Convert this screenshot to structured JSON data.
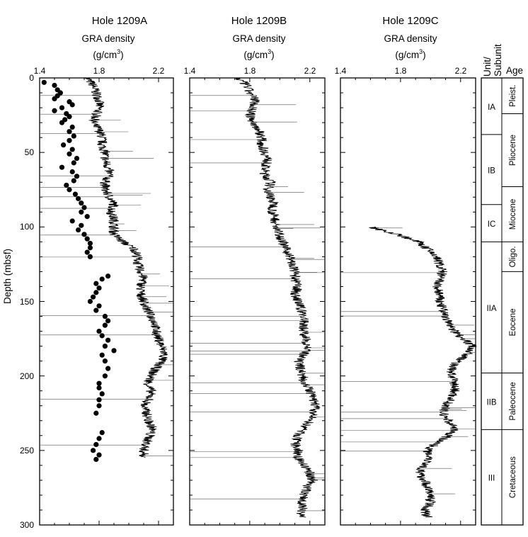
{
  "chart_data": [
    {
      "type": "line",
      "title": "Hole 1209A",
      "xlabel": "GRA density",
      "xunit": "(g/cm",
      "xunit_sup": "3",
      "xunit_close": ")",
      "ylabel": "Depth (mbsf)",
      "xlim": [
        1.4,
        2.3
      ],
      "ylim": [
        0,
        300
      ],
      "x_ticks": [
        "1.4",
        "1.8",
        "2.2"
      ],
      "y_ticks": [
        "0",
        "50",
        "100",
        "150",
        "200",
        "250",
        "300"
      ],
      "line_color": "#000000",
      "point_color": "#000000",
      "series": [
        {
          "style": "trace",
          "depth": [
            0,
            5,
            10,
            15,
            20,
            25,
            30,
            35,
            40,
            45,
            50,
            55,
            60,
            65,
            70,
            75,
            80,
            85,
            90,
            95,
            100,
            105,
            110,
            115,
            120,
            125,
            130,
            135,
            140,
            145,
            150,
            155,
            160,
            165,
            170,
            175,
            180,
            185,
            190,
            195,
            200,
            205,
            210,
            215,
            220,
            225,
            230,
            235,
            240,
            245,
            250,
            255
          ],
          "density": [
            1.72,
            1.76,
            1.78,
            1.8,
            1.8,
            1.78,
            1.76,
            1.8,
            1.82,
            1.82,
            1.84,
            1.84,
            1.86,
            1.87,
            1.84,
            1.84,
            1.87,
            1.9,
            1.88,
            1.9,
            1.9,
            1.9,
            1.96,
            2.04,
            2.06,
            2.06,
            2.08,
            2.1,
            2.08,
            2.08,
            2.1,
            2.12,
            2.15,
            2.18,
            2.18,
            2.2,
            2.22,
            2.24,
            2.22,
            2.18,
            2.15,
            2.13,
            2.15,
            2.14,
            2.1,
            2.12,
            2.13,
            2.16,
            2.14,
            2.12,
            2.1,
            2.1
          ]
        },
        {
          "style": "points",
          "depth": [
            3,
            5,
            8,
            10,
            12,
            14,
            16,
            18,
            20,
            22,
            24,
            26,
            28,
            30,
            33,
            36,
            39,
            42,
            45,
            48,
            51,
            54,
            57,
            60,
            63,
            66,
            69,
            72,
            75,
            78,
            81,
            84,
            87,
            90,
            93,
            96,
            99,
            102,
            105,
            108,
            111,
            114,
            117,
            120,
            133,
            135,
            138,
            141,
            144,
            147,
            150,
            153,
            156,
            160,
            163,
            166,
            170,
            173,
            176,
            180,
            183,
            186,
            190,
            195,
            200,
            205,
            208,
            212,
            216,
            220,
            225,
            238,
            242,
            246,
            250,
            253,
            256
          ],
          "density": [
            1.43,
            1.5,
            1.52,
            1.54,
            1.52,
            1.5,
            1.6,
            1.62,
            1.55,
            1.5,
            1.58,
            1.6,
            1.57,
            1.55,
            1.62,
            1.6,
            1.63,
            1.6,
            1.56,
            1.62,
            1.6,
            1.65,
            1.63,
            1.55,
            1.62,
            1.65,
            1.63,
            1.58,
            1.6,
            1.64,
            1.66,
            1.68,
            1.7,
            1.68,
            1.72,
            1.62,
            1.68,
            1.66,
            1.7,
            1.72,
            1.74,
            1.74,
            1.72,
            1.74,
            1.86,
            1.82,
            1.78,
            1.8,
            1.78,
            1.76,
            1.74,
            1.8,
            1.78,
            1.84,
            1.86,
            1.84,
            1.8,
            1.82,
            1.86,
            1.84,
            1.9,
            1.82,
            1.84,
            1.86,
            1.84,
            1.8,
            1.8,
            1.82,
            1.8,
            1.8,
            1.78,
            1.82,
            1.8,
            1.78,
            1.76,
            1.8,
            1.78
          ]
        }
      ]
    },
    {
      "type": "line",
      "title": "Hole 1209B",
      "xlabel": "GRA density",
      "xunit": "(g/cm",
      "xunit_sup": "3",
      "xunit_close": ")",
      "xlim": [
        1.4,
        2.3
      ],
      "ylim": [
        0,
        300
      ],
      "x_ticks": [
        "1.4",
        "1.8",
        "2.2"
      ],
      "line_color": "#000000",
      "series": [
        {
          "style": "trace",
          "depth": [
            0,
            5,
            10,
            15,
            20,
            25,
            30,
            35,
            40,
            45,
            50,
            55,
            60,
            65,
            70,
            75,
            80,
            85,
            90,
            95,
            100,
            105,
            110,
            115,
            120,
            125,
            130,
            135,
            140,
            145,
            150,
            155,
            160,
            165,
            170,
            175,
            180,
            185,
            190,
            195,
            200,
            205,
            210,
            215,
            220,
            225,
            230,
            235,
            240,
            245,
            250,
            255,
            260,
            265,
            270,
            275,
            280,
            285,
            290,
            295
          ],
          "density": [
            1.72,
            1.78,
            1.8,
            1.84,
            1.82,
            1.8,
            1.82,
            1.86,
            1.88,
            1.88,
            1.9,
            1.92,
            1.9,
            1.9,
            1.94,
            1.92,
            1.94,
            1.96,
            1.95,
            1.97,
            1.97,
            2.0,
            2.02,
            2.04,
            2.07,
            2.08,
            2.1,
            2.1,
            2.12,
            2.1,
            2.12,
            2.14,
            2.16,
            2.16,
            2.16,
            2.17,
            2.19,
            2.16,
            2.12,
            2.14,
            2.15,
            2.17,
            2.2,
            2.22,
            2.24,
            2.22,
            2.2,
            2.16,
            2.12,
            2.1,
            2.12,
            2.12,
            2.16,
            2.2,
            2.22,
            2.18,
            2.16,
            2.15,
            2.15,
            2.14
          ]
        }
      ]
    },
    {
      "type": "line",
      "title": "Hole 1209C",
      "xlabel": "GRA density",
      "xunit": "(g/cm",
      "xunit_sup": "3",
      "xunit_close": ")",
      "xlim": [
        1.4,
        2.3
      ],
      "ylim": [
        0,
        300
      ],
      "x_ticks": [
        "1.4",
        "1.8",
        "2.2"
      ],
      "line_color": "#000000",
      "series": [
        {
          "style": "trace",
          "depth": [
            100,
            105,
            110,
            115,
            120,
            125,
            130,
            135,
            140,
            145,
            150,
            155,
            160,
            165,
            170,
            175,
            180,
            185,
            190,
            195,
            200,
            205,
            210,
            215,
            220,
            225,
            230,
            235,
            240,
            245,
            250,
            255,
            260,
            265,
            270,
            275,
            280,
            285,
            290,
            295
          ],
          "density": [
            1.6,
            1.78,
            1.92,
            1.98,
            2.04,
            2.06,
            2.08,
            2.06,
            2.04,
            2.06,
            2.06,
            2.08,
            2.1,
            2.12,
            2.16,
            2.22,
            2.28,
            2.25,
            2.18,
            2.14,
            2.14,
            2.16,
            2.16,
            2.14,
            2.1,
            2.08,
            2.12,
            2.16,
            2.12,
            2.04,
            1.98,
            2.0,
            1.96,
            1.92,
            1.96,
            1.98,
            2.0,
            2.0,
            1.96,
            1.98
          ]
        }
      ]
    }
  ],
  "units_column": {
    "header_unit": "Unit/",
    "header_subunit": "Subunit",
    "header_age": "Age",
    "units": [
      {
        "label": "IA",
        "top": 0,
        "bottom": 38
      },
      {
        "label": "IB",
        "top": 38,
        "bottom": 85
      },
      {
        "label": "IC",
        "top": 85,
        "bottom": 110
      },
      {
        "label": "IIA",
        "top": 110,
        "bottom": 198
      },
      {
        "label": "IIB",
        "top": 198,
        "bottom": 236
      },
      {
        "label": "III",
        "top": 236,
        "bottom": 300
      }
    ],
    "ages": [
      {
        "label": "Pleist.",
        "top": 0,
        "bottom": 24
      },
      {
        "label": "Pliocene",
        "top": 24,
        "bottom": 73
      },
      {
        "label": "Miocene",
        "top": 73,
        "bottom": 110
      },
      {
        "label": "Oligo.",
        "top": 110,
        "bottom": 130
      },
      {
        "label": "Eocene",
        "top": 130,
        "bottom": 198
      },
      {
        "label": "Paleocene",
        "top": 198,
        "bottom": 236
      },
      {
        "label": "Cretaceous",
        "top": 236,
        "bottom": 300
      }
    ]
  }
}
